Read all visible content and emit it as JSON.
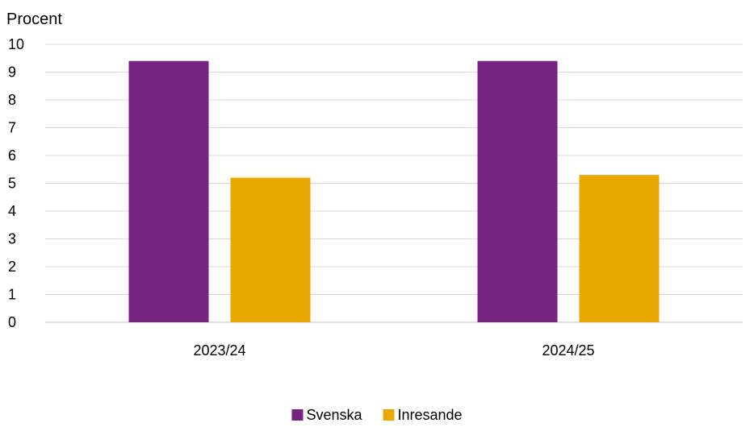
{
  "chart_data": {
    "type": "bar",
    "ylabel": "Procent",
    "categories": [
      "2023/24",
      "2024/25"
    ],
    "series": [
      {
        "name": "Svenska",
        "values": [
          9.4,
          9.4
        ],
        "color": "#76257f"
      },
      {
        "name": "Inresande",
        "values": [
          5.2,
          5.3
        ],
        "color": "#e8a800"
      }
    ],
    "ylim": [
      0,
      10
    ],
    "yticks": [
      "0",
      "1",
      "2",
      "3",
      "4",
      "5",
      "6",
      "7",
      "8",
      "9",
      "10"
    ],
    "grid": true,
    "legend_position": "bottom-center"
  }
}
